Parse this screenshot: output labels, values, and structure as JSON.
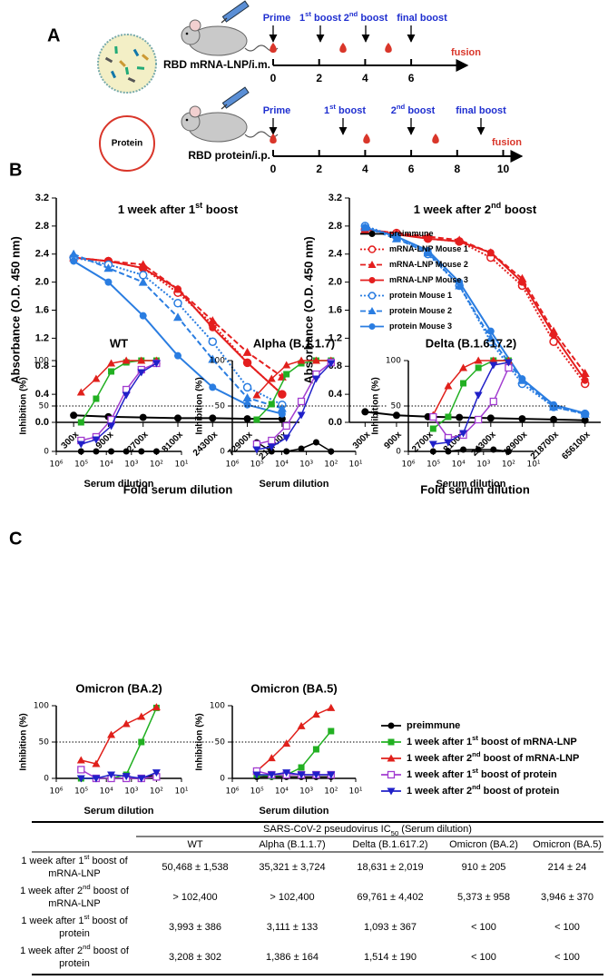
{
  "panel_labels": [
    "A",
    "B",
    "C"
  ],
  "schedule": [
    {
      "vaccine": "RBD mRNA-LNP/i.m.",
      "events": [
        [
          "Prime"
        ],
        [
          "1",
          "st",
          " boost"
        ],
        [
          "2",
          "nd",
          " boost"
        ],
        [
          "final boost"
        ]
      ],
      "end": "fusion",
      "weeks": [
        0,
        2,
        4,
        6
      ]
    },
    {
      "particle": "Protein",
      "vaccine": "RBD protein/i.p.",
      "events": [
        [
          "Prime"
        ],
        [
          "1",
          "st",
          " boost"
        ],
        [
          "2",
          "nd",
          " boost"
        ],
        [
          "final boost"
        ]
      ],
      "end": "fusion",
      "weeks": [
        0,
        2,
        4,
        6,
        8,
        10
      ]
    }
  ],
  "chart_data": [
    {
      "type": "line",
      "title": [
        "1 week after 1",
        "st",
        " boost"
      ],
      "x_label": "Fold serum dilution",
      "y_label": "Absorbance (O.D. 450 nm)",
      "categories": [
        "300x",
        "900x",
        "2700x",
        "8100x",
        "24300x",
        "72900x",
        "218700x"
      ],
      "ylim": [
        0,
        3.2
      ],
      "yticks": [
        {
          "value": 0,
          "label": "0.0"
        },
        0.4,
        0.8,
        1.2,
        1.6,
        {
          "value": 2,
          "label": "2.0"
        },
        2.4,
        2.8,
        3.2
      ],
      "series": [
        {
          "color": "#000000",
          "marker": "circle",
          "dash": "solid",
          "values": [
            0.1,
            0.08,
            0.07,
            0.06,
            0.06,
            0.05,
            0.05
          ]
        },
        {
          "color": "#e41e1e",
          "marker": "open-circle",
          "dash": "dotted",
          "values": [
            2.35,
            2.3,
            2.2,
            1.85,
            1.4,
            0.85,
            0.4
          ]
        },
        {
          "color": "#e41e1e",
          "marker": "triangle",
          "dash": "dashed",
          "values": [
            2.35,
            2.3,
            2.25,
            1.9,
            1.45,
            1.0,
            0.65
          ]
        },
        {
          "color": "#e41e1e",
          "marker": "circle",
          "dash": "solid",
          "values": [
            2.35,
            2.3,
            2.2,
            1.9,
            1.35,
            0.85,
            0.4
          ]
        },
        {
          "color": "#2a7de1",
          "marker": "open-circle",
          "dash": "dotted",
          "values": [
            2.35,
            2.25,
            2.1,
            1.7,
            1.15,
            0.5,
            0.25
          ]
        },
        {
          "color": "#2a7de1",
          "marker": "triangle",
          "dash": "dashed",
          "values": [
            2.4,
            2.2,
            2.0,
            1.5,
            0.9,
            0.35,
            0.2
          ]
        },
        {
          "color": "#2a7de1",
          "marker": "circle",
          "dash": "solid",
          "values": [
            2.3,
            2.0,
            1.52,
            0.95,
            0.5,
            0.25,
            0.12
          ]
        }
      ]
    },
    {
      "type": "line",
      "title": [
        "1 week after 2",
        "nd",
        " boost"
      ],
      "x_label": "Fold serum dilution",
      "y_label": "Absorbance (O.D. 450 nm)",
      "categories": [
        "300x",
        "900x",
        "2700x",
        "8100x",
        "24300x",
        "72900x",
        "218700x",
        "656100x"
      ],
      "ylim": [
        0,
        3.2
      ],
      "yticks": [
        {
          "value": 0,
          "label": "0.0"
        },
        0.4,
        0.8,
        1.2,
        1.6,
        {
          "value": 2,
          "label": "2.0"
        },
        2.4,
        2.8,
        3.2
      ],
      "legend": "left",
      "series": [
        {
          "name": "preimmune",
          "color": "#000000",
          "marker": "circle",
          "dash": "solid",
          "values": [
            0.15,
            0.1,
            0.08,
            0.07,
            0.06,
            0.05,
            0.04,
            0.03
          ]
        },
        {
          "name": "mRNA-LNP Mouse 1",
          "color": "#e41e1e",
          "marker": "open-circle",
          "dash": "dotted",
          "values": [
            2.75,
            2.7,
            2.62,
            2.58,
            2.35,
            1.95,
            1.15,
            0.55
          ]
        },
        {
          "name": "mRNA-LNP Mouse 2",
          "color": "#e41e1e",
          "marker": "triangle",
          "dash": "dashed",
          "values": [
            2.75,
            2.7,
            2.65,
            2.6,
            2.42,
            2.05,
            1.3,
            0.7
          ]
        },
        {
          "name": "mRNA-LNP Mouse 3",
          "color": "#e41e1e",
          "marker": "circle",
          "dash": "solid",
          "values": [
            2.75,
            2.68,
            2.62,
            2.58,
            2.42,
            2.0,
            1.25,
            0.6
          ]
        },
        {
          "name": "protein Mouse 1",
          "color": "#2a7de1",
          "marker": "open-circle",
          "dash": "dotted",
          "values": [
            2.8,
            2.65,
            2.4,
            1.95,
            1.15,
            0.55,
            0.22,
            0.12
          ]
        },
        {
          "name": "protein Mouse 2",
          "color": "#2a7de1",
          "marker": "triangle",
          "dash": "dashed",
          "values": [
            2.78,
            2.62,
            2.42,
            1.95,
            1.2,
            0.6,
            0.22,
            0.12
          ]
        },
        {
          "name": "protein Mouse 3",
          "color": "#2a7de1",
          "marker": "circle",
          "dash": "solid",
          "values": [
            2.78,
            2.65,
            2.45,
            2.0,
            1.3,
            0.62,
            0.25,
            0.13
          ]
        }
      ]
    },
    {
      "type": "line",
      "title": "WT",
      "x_label": "Serum dilution",
      "y_label": "Inhibition (%)",
      "x": [
        102400,
        25600,
        6400,
        1600,
        400,
        100
      ],
      "xscale": "log",
      "xlim": [
        1000000,
        10
      ],
      "xticks": [
        {
          "value": 1000000,
          "label": "10⁶"
        },
        {
          "value": 100000,
          "label": "10⁵"
        },
        {
          "value": 10000,
          "label": "10⁴"
        },
        {
          "value": 1000,
          "label": "10³"
        },
        {
          "value": 100,
          "label": "10²"
        },
        {
          "value": 10,
          "label": "10¹"
        }
      ],
      "ylim": [
        0,
        100
      ],
      "yticks": [
        0,
        50,
        100
      ],
      "hline": 50,
      "series": [
        {
          "color": "#000000",
          "marker": "circle",
          "values": [
            0,
            0,
            0,
            0,
            0,
            0
          ]
        },
        {
          "color": "#22b022",
          "marker": "square",
          "values": [
            32,
            58,
            88,
            98,
            100,
            100
          ]
        },
        {
          "color": "#e0201b",
          "marker": "triangle",
          "values": [
            65,
            80,
            97,
            100,
            100,
            100
          ]
        },
        {
          "color": "#a23cd0",
          "marker": "open-square",
          "values": [
            12,
            16,
            35,
            68,
            90,
            97
          ]
        },
        {
          "color": "#2020c8",
          "marker": "down-triangle",
          "values": [
            8,
            13,
            28,
            62,
            87,
            97
          ]
        }
      ]
    },
    {
      "type": "line",
      "title": "Alpha (B.1.1.7)",
      "x_label": "Serum dilution",
      "y_label": "Inhibition (%)",
      "x": [
        102400,
        25600,
        6400,
        1600,
        400,
        100
      ],
      "xscale": "log",
      "xlim": [
        1000000,
        10
      ],
      "xticks": [
        {
          "value": 1000000,
          "label": "10⁶"
        },
        {
          "value": 100000,
          "label": "10⁵"
        },
        {
          "value": 10000,
          "label": "10⁴"
        },
        {
          "value": 1000,
          "label": "10³"
        },
        {
          "value": 100,
          "label": "10²"
        },
        {
          "value": 10,
          "label": "10¹"
        }
      ],
      "ylim": [
        0,
        100
      ],
      "yticks": [
        0,
        50,
        100
      ],
      "hline": 50,
      "series": [
        {
          "color": "#000000",
          "marker": "circle",
          "values": [
            10,
            0,
            0,
            3,
            10,
            0
          ]
        },
        {
          "color": "#22b022",
          "marker": "square",
          "values": [
            35,
            52,
            85,
            97,
            100,
            100
          ]
        },
        {
          "color": "#e0201b",
          "marker": "triangle",
          "values": [
            62,
            80,
            95,
            100,
            100,
            100
          ]
        },
        {
          "color": "#a23cd0",
          "marker": "open-square",
          "values": [
            8,
            12,
            28,
            55,
            85,
            98
          ]
        },
        {
          "color": "#2020c8",
          "marker": "down-triangle",
          "values": [
            2,
            5,
            15,
            40,
            80,
            97
          ]
        }
      ]
    },
    {
      "type": "line",
      "title": "Delta (B.1.617.2)",
      "x_label": "Serum dilution",
      "y_label": "Inhibition (%)",
      "x": [
        102400,
        25600,
        6400,
        1600,
        400,
        100
      ],
      "xscale": "log",
      "xlim": [
        1000000,
        10
      ],
      "xticks": [
        {
          "value": 1000000,
          "label": "10⁶"
        },
        {
          "value": 100000,
          "label": "10⁵"
        },
        {
          "value": 10000,
          "label": "10⁴"
        },
        {
          "value": 1000,
          "label": "10³"
        },
        {
          "value": 100,
          "label": "10²"
        },
        {
          "value": 10,
          "label": "10¹"
        }
      ],
      "ylim": [
        0,
        100
      ],
      "yticks": [
        0,
        50,
        100
      ],
      "hline": 50,
      "series": [
        {
          "color": "#000000",
          "marker": "circle",
          "values": [
            0,
            0,
            2,
            2,
            2,
            0
          ]
        },
        {
          "color": "#22b022",
          "marker": "square",
          "values": [
            25,
            38,
            75,
            92,
            100,
            100
          ]
        },
        {
          "color": "#e0201b",
          "marker": "triangle",
          "values": [
            40,
            72,
            92,
            100,
            100,
            100
          ]
        },
        {
          "color": "#a23cd0",
          "marker": "open-square",
          "values": [
            38,
            15,
            18,
            35,
            55,
            92
          ]
        },
        {
          "color": "#2020c8",
          "marker": "down-triangle",
          "values": [
            8,
            10,
            20,
            62,
            95,
            98
          ]
        }
      ]
    },
    {
      "type": "line",
      "title": "Omicron (BA.2)",
      "x_label": "Serum dilution",
      "y_label": "Inhibition (%)",
      "x": [
        102400,
        25600,
        6400,
        1600,
        400,
        100
      ],
      "xscale": "log",
      "xlim": [
        1000000,
        10
      ],
      "xticks": [
        {
          "value": 1000000,
          "label": "10⁶"
        },
        {
          "value": 100000,
          "label": "10⁵"
        },
        {
          "value": 10000,
          "label": "10⁴"
        },
        {
          "value": 1000,
          "label": "10³"
        },
        {
          "value": 100,
          "label": "10²"
        },
        {
          "value": 10,
          "label": "10¹"
        }
      ],
      "ylim": [
        0,
        100
      ],
      "yticks": [
        0,
        50,
        100
      ],
      "hline": 50,
      "series": [
        {
          "color": "#000000",
          "marker": "circle",
          "values": [
            0,
            0,
            0,
            0,
            0,
            5
          ]
        },
        {
          "color": "#22b022",
          "marker": "square",
          "values": [
            0,
            0,
            0,
            5,
            50,
            97
          ]
        },
        {
          "color": "#e0201b",
          "marker": "triangle",
          "values": [
            25,
            20,
            60,
            75,
            85,
            98
          ]
        },
        {
          "color": "#a23cd0",
          "marker": "open-square",
          "values": [
            12,
            0,
            0,
            0,
            0,
            2
          ]
        },
        {
          "color": "#2020c8",
          "marker": "down-triangle",
          "values": [
            0,
            0,
            5,
            3,
            0,
            8
          ]
        }
      ]
    },
    {
      "type": "line",
      "title": "Omicron (BA.5)",
      "x_label": "Serum dilution",
      "y_label": "Inhibition (%)",
      "x": [
        102400,
        25600,
        6400,
        1600,
        400,
        100
      ],
      "xscale": "log",
      "xlim": [
        1000000,
        10
      ],
      "xticks": [
        {
          "value": 1000000,
          "label": "10⁶"
        },
        {
          "value": 100000,
          "label": "10⁵"
        },
        {
          "value": 10000,
          "label": "10⁴"
        },
        {
          "value": 1000,
          "label": "10³"
        },
        {
          "value": 100,
          "label": "10²"
        },
        {
          "value": 10,
          "label": "10¹"
        }
      ],
      "ylim": [
        0,
        100
      ],
      "yticks": [
        0,
        50,
        100
      ],
      "hline": 50,
      "legend": "right",
      "series": [
        {
          "name": "preimmune",
          "color": "#000000",
          "marker": "circle",
          "values": [
            2,
            2,
            2,
            2,
            2,
            2
          ]
        },
        {
          "name": [
            "1 week after 1",
            "st",
            " boost of mRNA-LNP"
          ],
          "color": "#22b022",
          "marker": "square",
          "values": [
            5,
            3,
            5,
            15,
            40,
            65
          ]
        },
        {
          "name": [
            "1 week after 2",
            "nd",
            " boost of mRNA-LNP"
          ],
          "color": "#e0201b",
          "marker": "triangle",
          "values": [
            10,
            28,
            48,
            72,
            88,
            97
          ]
        },
        {
          "name": [
            "1 week after 1",
            "st",
            " boost of protein"
          ],
          "color": "#a23cd0",
          "marker": "open-square",
          "values": [
            10,
            5,
            5,
            5,
            5,
            5
          ]
        },
        {
          "name": [
            "1 week after 2",
            "nd",
            " boost of protein"
          ],
          "color": "#2020c8",
          "marker": "down-triangle",
          "values": [
            5,
            5,
            8,
            5,
            5,
            5
          ]
        }
      ]
    }
  ],
  "table": {
    "title": [
      "SARS-CoV-2 pseudovirus IC",
      "50",
      " (Serum dilution)"
    ],
    "columns": [
      "WT",
      "Alpha (B.1.1.7)",
      "Delta (B.1.617.2)",
      "Omicron (BA.2)",
      "Omicron (BA.5)"
    ],
    "rows": [
      {
        "label": [
          "1 week after 1",
          "st",
          " boost of",
          "mRNA-LNP"
        ],
        "cells": [
          "50,468 ± 1,538",
          "35,321 ± 3,724",
          "18,631 ± 2,019",
          "910 ± 205",
          "214 ± 24"
        ]
      },
      {
        "label": [
          "1 week after 2",
          "nd",
          " boost of",
          "mRNA-LNP"
        ],
        "cells": [
          "> 102,400",
          "> 102,400",
          "69,761 ± 4,402",
          "5,373 ± 958",
          "3,946 ± 370"
        ]
      },
      {
        "label": [
          "1 week after 1",
          "st",
          " boost of",
          "protein"
        ],
        "cells": [
          "3,993 ± 386",
          "3,111 ± 133",
          "1,093 ± 367",
          "< 100",
          "< 100"
        ]
      },
      {
        "label": [
          "1 week after 2",
          "nd",
          " boost of",
          "protein"
        ],
        "cells": [
          "3,208 ± 302",
          "1,386 ± 164",
          "1,514 ± 190",
          "< 100",
          "< 100"
        ]
      }
    ]
  }
}
